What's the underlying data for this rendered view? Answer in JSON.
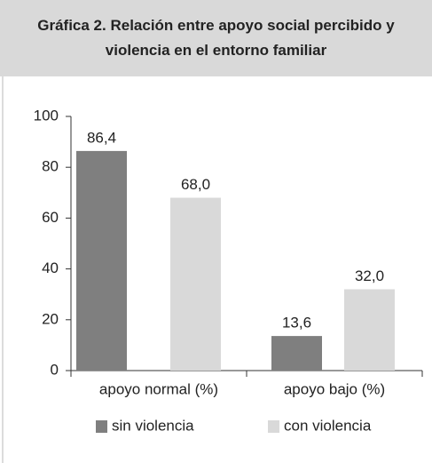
{
  "chart_data": {
    "type": "bar",
    "title": "Gráfica 2. Relación entre apoyo social percibido y violencia en el entorno familiar",
    "categories": [
      "apoyo normal (%)",
      "apoyo bajo (%)"
    ],
    "series": [
      {
        "name": "sin violencia",
        "color": "#7f7f7f",
        "values": [
          86.4,
          13.6
        ],
        "value_labels": [
          "86,4",
          "13,6"
        ]
      },
      {
        "name": "con violencia",
        "color": "#d9d9d9",
        "values": [
          68.0,
          32.0
        ],
        "value_labels": [
          "68,0",
          "32,0"
        ]
      }
    ],
    "ylim": [
      0,
      100
    ],
    "yticks": [
      0,
      20,
      40,
      60,
      80,
      100
    ],
    "legend": "bottom"
  }
}
